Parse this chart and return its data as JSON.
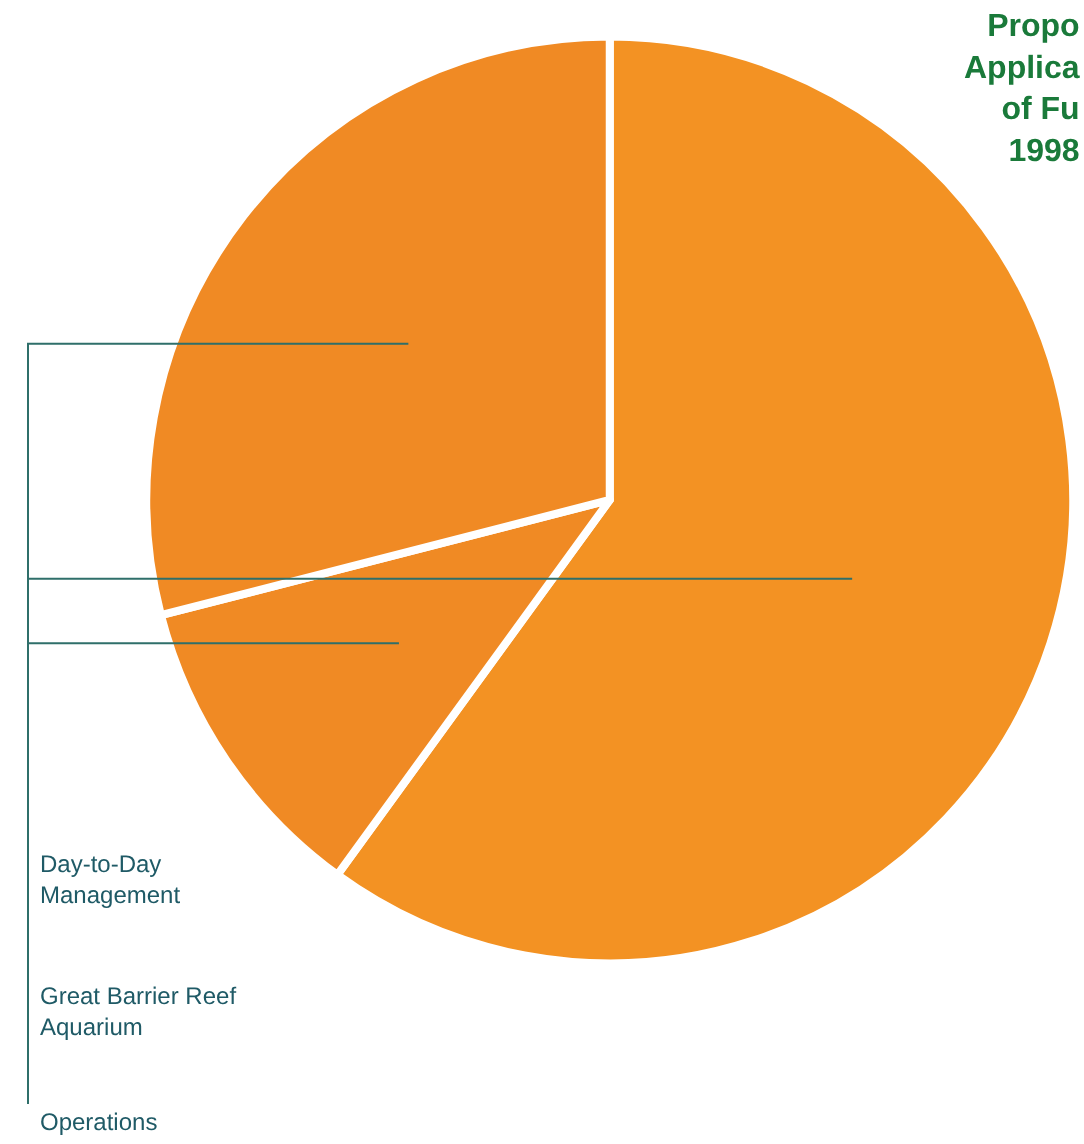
{
  "chart_data": {
    "type": "pie",
    "title": "Propo\nApplica\nof Fu\n1998",
    "categories": [
      "Operations",
      "Great Barrier Reef\nAquarium",
      "Day-to-Day\nManagement"
    ],
    "values": [
      60,
      11,
      29
    ],
    "colors": [
      "#f39223",
      "#f08a24",
      "#f08a24"
    ],
    "legend": false
  }
}
